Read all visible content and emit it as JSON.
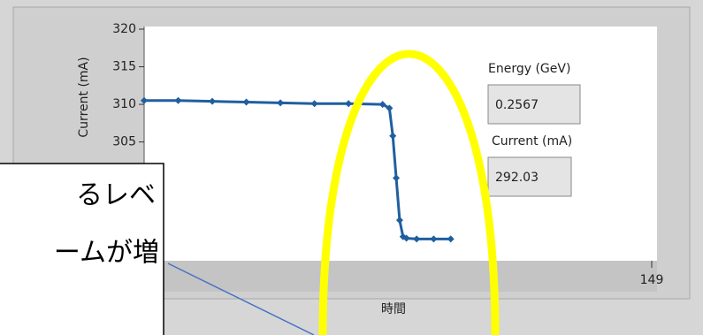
{
  "chart_data": {
    "type": "line",
    "y_label": "Current (mA)",
    "x_label": "時間",
    "x": [
      0,
      10,
      20,
      30,
      40,
      50,
      60,
      70,
      72,
      73,
      74,
      75,
      76,
      77,
      80,
      85,
      90
    ],
    "series": [
      {
        "name": "Current",
        "color": "#1f5f9f",
        "values": [
          310.5,
          310.5,
          310.4,
          310.3,
          310.2,
          310.1,
          310.1,
          310.0,
          309.5,
          305.8,
          300.2,
          294.6,
          292.4,
          292.2,
          292.1,
          292.1,
          292.1
        ]
      }
    ],
    "xlim": [
      0,
      149
    ],
    "xticks": [
      149
    ],
    "ylim": [
      289.2,
      320
    ],
    "yticks": [
      305,
      310,
      315,
      320
    ]
  },
  "indicators": [
    {
      "label": "Energy (GeV)",
      "value": "0.2567"
    },
    {
      "label": "Current (mA)",
      "value": "292.03"
    }
  ],
  "callout": {
    "lines": [
      "るレベ",
      "ームが増"
    ]
  }
}
